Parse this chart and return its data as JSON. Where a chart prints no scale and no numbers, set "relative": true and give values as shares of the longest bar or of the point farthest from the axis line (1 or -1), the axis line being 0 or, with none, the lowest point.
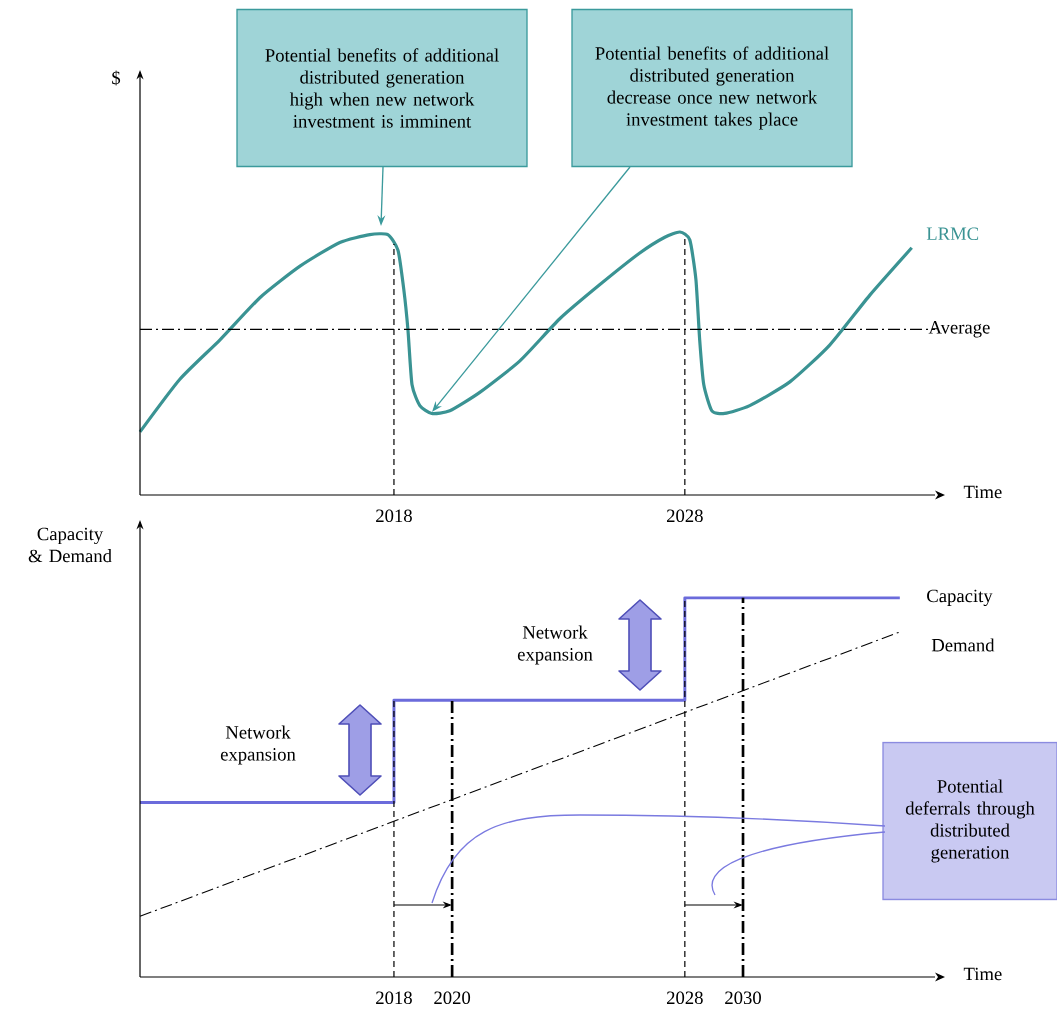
{
  "chart_data": [
    {
      "type": "line",
      "relative": true,
      "xlabel": "Time",
      "ylabel": "$",
      "xlim": [
        2009.27,
        2036.6
      ],
      "xticks": [
        2018,
        2028
      ],
      "x": [
        2009.27,
        2010.64,
        2012.02,
        2013.39,
        2014.77,
        2016.14,
        2017.17,
        2017.79,
        2018.14,
        2018.34,
        2018.48,
        2018.62,
        2018.89,
        2019.3,
        2019.92,
        2020.95,
        2022.33,
        2023.7,
        2025.08,
        2026.45,
        2027.31,
        2027.83,
        2028.17,
        2028.38,
        2028.51,
        2028.65,
        2028.93,
        2029.37,
        2030.23,
        2031.61,
        2032.98,
        2034.36,
        2035.8
      ],
      "series": [
        {
          "name": "LRMC",
          "color": "#3a9393",
          "values": [
            0.24,
            0.44,
            0.59,
            0.75,
            0.87,
            0.96,
            0.99,
            0.99,
            0.93,
            0.78,
            0.63,
            0.42,
            0.34,
            0.31,
            0.32,
            0.39,
            0.51,
            0.67,
            0.8,
            0.92,
            0.98,
            1,
            0.97,
            0.82,
            0.59,
            0.42,
            0.32,
            0.31,
            0.34,
            0.43,
            0.57,
            0.76,
            0.94
          ]
        }
      ],
      "ref_lines": [
        {
          "axis": "x",
          "value": 2018,
          "line_style": "dashed"
        },
        {
          "axis": "x",
          "value": 2028,
          "line_style": "dashed"
        },
        {
          "axis": "y",
          "value": 0.63,
          "label": "Average",
          "line_style": "dashdot"
        }
      ],
      "annotations": [
        "Potential benefits of additional distributed generation high when new network investment is imminent",
        "Potential benefits of additional distributed generation decrease once new network investment takes place"
      ]
    },
    {
      "type": "line",
      "relative": true,
      "xlabel": "Time",
      "ylabel": "Capacity & Demand",
      "xlim": [
        2009.27,
        2036.6
      ],
      "xticks": [
        2018,
        2020,
        2028,
        2030
      ],
      "series": [
        {
          "name": "Capacity",
          "type": "step",
          "color": "#6b6bdb",
          "x": [
            2009.27,
            2018,
            2028,
            2035.39
          ],
          "values": [
            0.46,
            0.73,
            1,
            1
          ]
        },
        {
          "name": "Demand",
          "color": "#000000",
          "line_style": "dashdot",
          "x": [
            2009.27,
            2035.39
          ],
          "values": [
            0.16,
            0.91
          ]
        }
      ],
      "ref_lines": [
        {
          "axis": "x",
          "value": 2018,
          "line_style": "dashed"
        },
        {
          "axis": "x",
          "value": 2020,
          "line_style": "dashdot"
        },
        {
          "axis": "x",
          "value": 2028,
          "line_style": "dashed"
        },
        {
          "axis": "x",
          "value": 2030,
          "line_style": "dashdot"
        }
      ],
      "annotations": [
        "Network expansion",
        "Network expansion",
        "Potential deferrals through distributed generation"
      ]
    }
  ]
}
